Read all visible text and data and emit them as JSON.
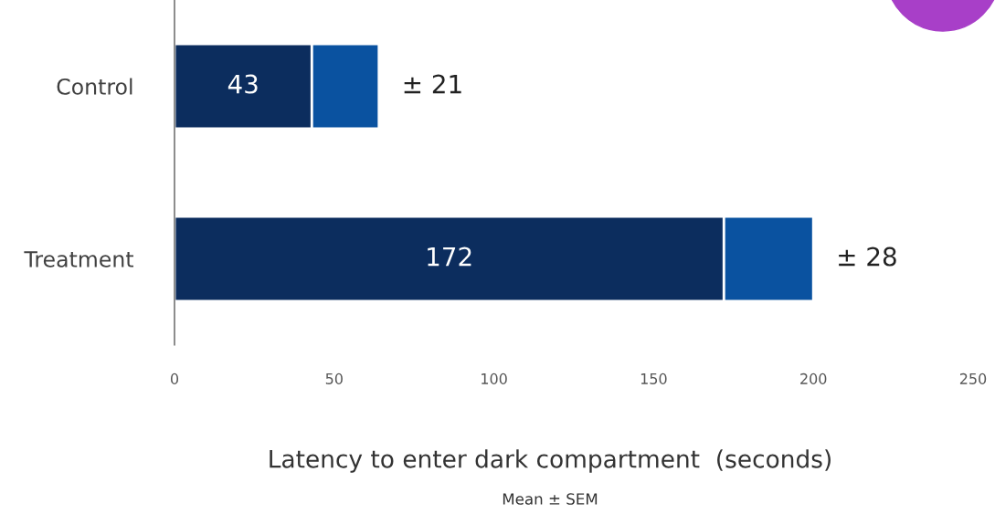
{
  "chart_data": {
    "type": "bar",
    "orientation": "horizontal",
    "stacked": true,
    "categories": [
      "Control",
      "Treatment"
    ],
    "series": [
      {
        "color": "#0c2d5e",
        "values": [
          43,
          172
        ],
        "value_labels": [
          "43",
          "172"
        ]
      },
      {
        "color": "#0a52a0",
        "values": [
          21,
          28
        ],
        "value_labels": [
          "± 21",
          "± 28"
        ]
      }
    ],
    "xlim": [
      0,
      250
    ],
    "xticks": [
      0,
      50,
      100,
      150,
      200,
      250
    ],
    "xlabel": "Latency to enter dark compartment  (seconds)",
    "annotations": [
      "Mean ± SEM"
    ],
    "grid": false,
    "legend": false
  }
}
